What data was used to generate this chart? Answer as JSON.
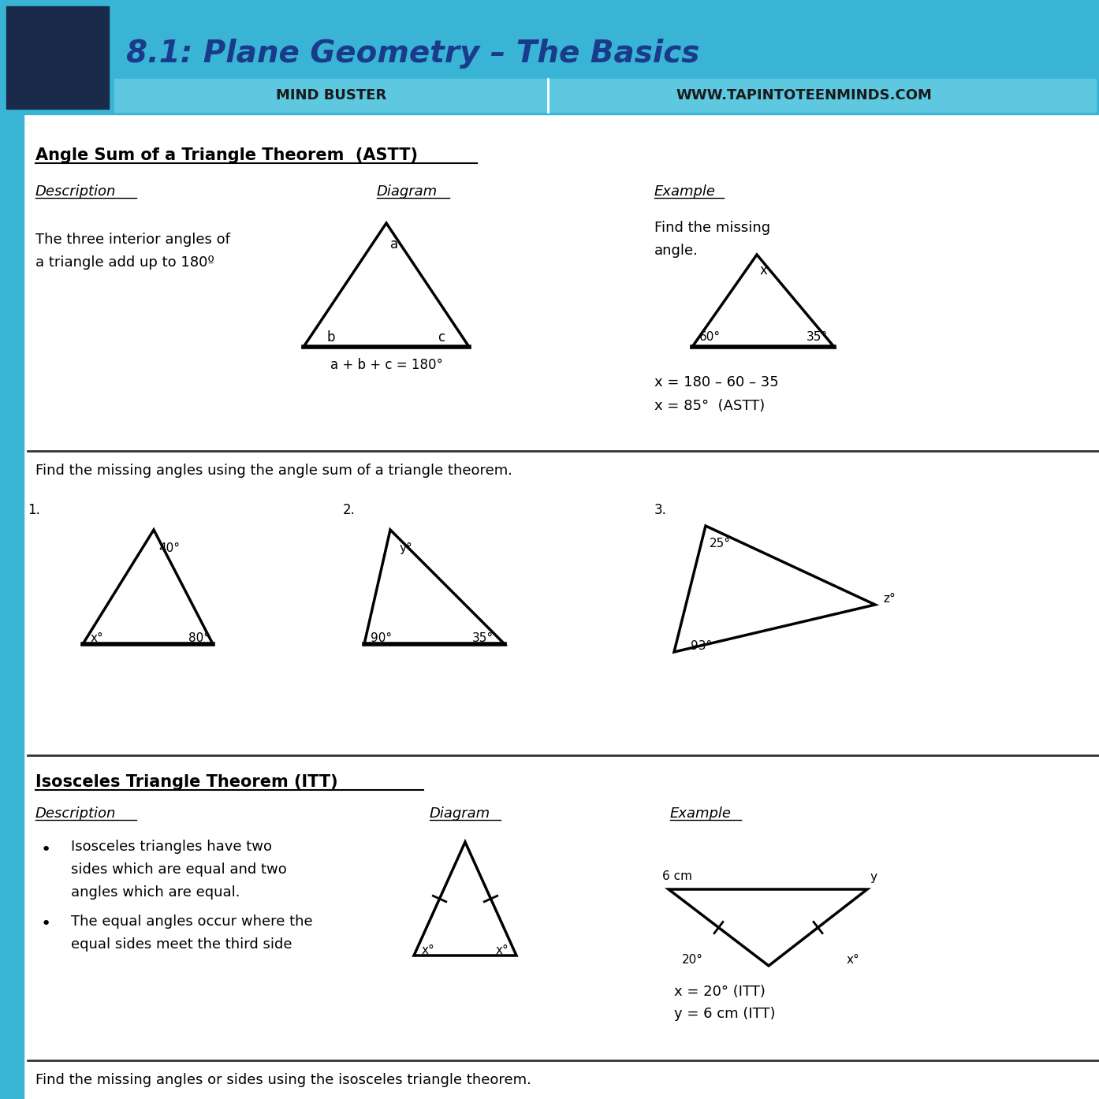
{
  "title": "8.1: Plane Geometry – The Basics",
  "subtitle_left": "MIND BUSTER",
  "subtitle_right": "WWW.TAPINTOTEENMINDS.COM",
  "header_bg": "#3ab4d4",
  "header_title_color": "#1a3a8c",
  "subtitle_bg": "#5ec8e0",
  "white_bg": "#ffffff",
  "black": "#000000",
  "dark_gray": "#333333",
  "section1_title": "Angle Sum of a Triangle Theorem  (ASTT)",
  "section1_desc_label": "Description",
  "section1_desc": "The three interior angles of\na triangle add up to 180º",
  "section1_diag_label": "Diagram",
  "section1_diag_formula": "a + b + c = 180°",
  "section1_ex_label": "Example",
  "section1_ex_text": "Find the missing\nangle.",
  "section1_ex_eq1": "x = 180 – 60 – 35",
  "section1_ex_eq2": "x = 85°  (ASTT)",
  "practice_title": "Find the missing angles using the angle sum of a triangle theorem.",
  "section2_title": "Isosceles Triangle Theorem (ITT)",
  "section2_desc_label": "Description",
  "section2_bullet1": "Isosceles triangles have two\nsides which are equal and two\nangles which are equal.",
  "section2_bullet2": "The equal angles occur where the\nequal sides meet the third side",
  "section2_diag_label": "Diagram",
  "section2_ex_label": "Example",
  "section2_ex_eq1": "x = 20° (ITT)",
  "section2_ex_eq2": "y = 6 cm (ITT)",
  "bottom_text": "Find the missing angles or sides using the isosceles triangle theorem."
}
